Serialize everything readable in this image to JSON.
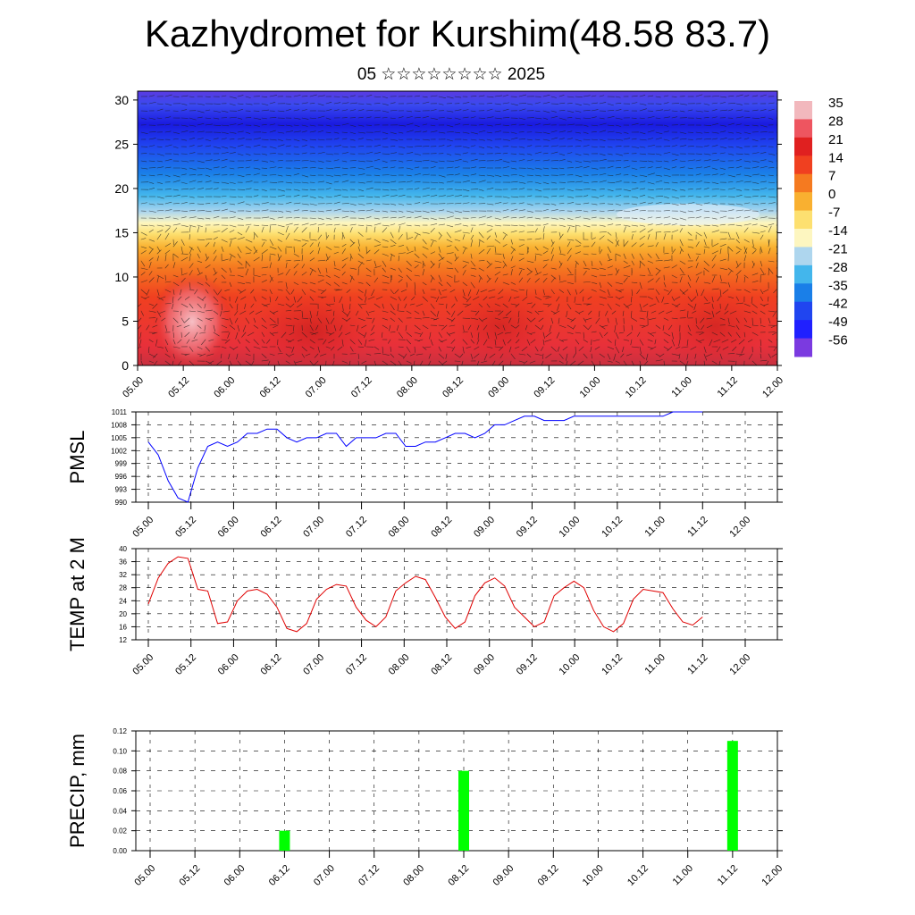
{
  "header": {
    "title": "Kazhydromet for Kurshim(48.58 83.7)",
    "subtitle": "05 ☆☆☆☆☆☆☆☆ 2025"
  },
  "time_labels": [
    "05.00",
    "05.12",
    "06.00",
    "06.12",
    "07.00",
    "07.12",
    "08.00",
    "08.12",
    "09.00",
    "09.12",
    "10.00",
    "10.12",
    "11.00",
    "11.12",
    "12.00"
  ],
  "chart_data": [
    {
      "type": "heatmap",
      "title": "",
      "xlabel": "",
      "ylabel": "",
      "x_ticks": [
        "05.00",
        "05.12",
        "06.00",
        "06.12",
        "07.00",
        "07.12",
        "08.00",
        "08.12",
        "09.00",
        "09.12",
        "10.00",
        "10.12",
        "11.00",
        "11.12",
        "12.00"
      ],
      "y_ticks": [
        0,
        5,
        10,
        15,
        20,
        25,
        30
      ],
      "ylim": [
        0,
        31
      ],
      "colorbar": {
        "labels": [
          "35",
          "28",
          "21",
          "14",
          "7",
          "0",
          "-7",
          "-14",
          "-21",
          "-28",
          "-35",
          "-42",
          "-49",
          "-56"
        ],
        "colors": [
          "#f2b8bd",
          "#ee5560",
          "#e02020",
          "#f04020",
          "#f57a20",
          "#f9b030",
          "#fde070",
          "#fdf6c0",
          "#aed6ee",
          "#43b6ec",
          "#1a7fe8",
          "#2045f0",
          "#2020ff",
          "#7b3ae0"
        ]
      },
      "overlay": "wind arrows"
    },
    {
      "type": "line",
      "ylabel": "PMSL",
      "y_ticks": [
        990,
        993,
        996,
        999,
        1002,
        1005,
        1008,
        1011
      ],
      "ylim": [
        990,
        1011
      ],
      "color": "#0000ff",
      "x": [
        0,
        1,
        2,
        3,
        4,
        5,
        6,
        7,
        8,
        9,
        10,
        11,
        12,
        13,
        14,
        15,
        16,
        17,
        18,
        19,
        20,
        21,
        22,
        23,
        24,
        25,
        26,
        27,
        28,
        29,
        30,
        31,
        32,
        33,
        34,
        35,
        36,
        37,
        38,
        39,
        40,
        41,
        42,
        43,
        44,
        45,
        46,
        47,
        48,
        49,
        50,
        51,
        52,
        53,
        54,
        55,
        56
      ],
      "values": [
        1004,
        1001,
        995,
        991,
        990,
        998,
        1003,
        1004,
        1003,
        1004,
        1006,
        1006,
        1007,
        1007,
        1005,
        1004,
        1005,
        1005,
        1006,
        1006,
        1003,
        1005,
        1005,
        1005,
        1006,
        1006,
        1003,
        1003,
        1004,
        1004,
        1005,
        1006,
        1006,
        1005,
        1006,
        1008,
        1008,
        1009,
        1010,
        1010,
        1009,
        1009,
        1009,
        1010,
        1010,
        1010,
        1010,
        1010,
        1010,
        1010,
        1010,
        1010,
        1010,
        1011,
        1011,
        1011,
        1011
      ]
    },
    {
      "type": "line",
      "ylabel": "TEMP at 2 M",
      "y_ticks": [
        12,
        16,
        20,
        24,
        28,
        32,
        36,
        40
      ],
      "ylim": [
        12,
        40
      ],
      "color": "#e00000",
      "x": [
        0,
        1,
        2,
        3,
        4,
        5,
        6,
        7,
        8,
        9,
        10,
        11,
        12,
        13,
        14,
        15,
        16,
        17,
        18,
        19,
        20,
        21,
        22,
        23,
        24,
        25,
        26,
        27,
        28,
        29,
        30,
        31,
        32,
        33,
        34,
        35,
        36,
        37,
        38,
        39,
        40,
        41,
        42,
        43,
        44,
        45,
        46,
        47,
        48,
        49,
        50,
        51,
        52,
        53,
        54,
        55,
        56
      ],
      "values": [
        23,
        31,
        35.5,
        37.5,
        37,
        27.5,
        27,
        17,
        17.5,
        24,
        27,
        27.5,
        26,
        22,
        15.5,
        14.5,
        17,
        24.5,
        27.5,
        29,
        28.5,
        22,
        18,
        16,
        19,
        27,
        29.5,
        31.5,
        30.5,
        25,
        19,
        15.5,
        17.5,
        25.5,
        29.5,
        31,
        28.5,
        22,
        19,
        16,
        17.5,
        25.5,
        28,
        30,
        28,
        21,
        16,
        14.5,
        17,
        24.5,
        27.5,
        27,
        26.5,
        21.5,
        17.5,
        16.5,
        19
      ]
    },
    {
      "type": "bar",
      "ylabel": "PRECIP, mm",
      "y_ticks": [
        "0.00",
        "0.02",
        "0.04",
        "0.06",
        "0.08",
        "0.10",
        "0.12"
      ],
      "ylim": [
        0,
        0.12
      ],
      "color": "#00ff00",
      "bars": [
        {
          "at": "06.12",
          "value": 0.02
        },
        {
          "at": "08.12",
          "value": 0.08
        },
        {
          "at": "11.12",
          "value": 0.11
        }
      ]
    }
  ]
}
